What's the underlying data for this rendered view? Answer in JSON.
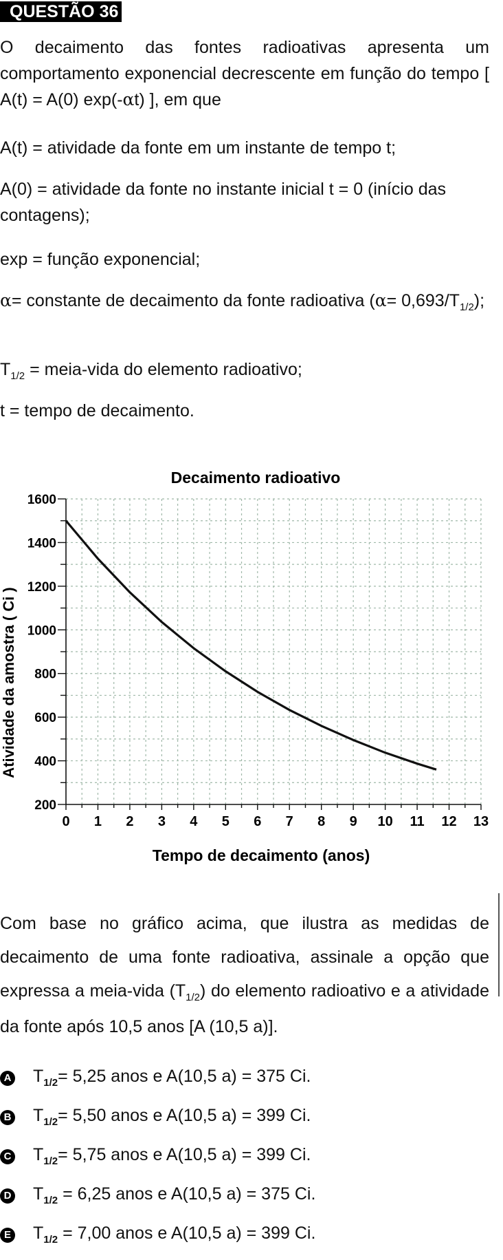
{
  "question": {
    "badge": "QUESTÃO 36"
  },
  "intro": {
    "p1a": "O decaimento das fontes radioativas apresenta um comportamento exponencial decrescente em função do tempo [ A(t) = A(0) exp(-",
    "alpha": "α",
    "p1b": "t) ], em que"
  },
  "definitions": {
    "d1": "A(t) = atividade da fonte em um instante de tempo t;",
    "d2": "A(0) = atividade da fonte no instante inicial t = 0 (início das contagens);",
    "d3": "exp = função exponencial;",
    "d4a": "= constante de decaimento da fonte radioativa (",
    "d4b": "= 0,693/T",
    "d4sub": "1/2",
    "d4c": ");",
    "d5a": "T",
    "d5sub": "1/2",
    "d5b": " = meia-vida do elemento radioativo;",
    "d6": "t = tempo de decaimento."
  },
  "chart_data": {
    "type": "line",
    "title": "Decaimento radioativo",
    "xlabel": "Tempo de decaimento (anos)",
    "ylabel": "Atividade da amostra ( Ci )",
    "xlim": [
      0,
      13
    ],
    "ylim": [
      200,
      1600
    ],
    "x_ticks": [
      0,
      1,
      2,
      3,
      4,
      5,
      6,
      7,
      8,
      9,
      10,
      11,
      12,
      13
    ],
    "y_ticks": [
      200,
      400,
      600,
      800,
      1000,
      1200,
      1400,
      1600
    ],
    "grid": true,
    "series": [
      {
        "values": [
          {
            "x": 0,
            "y": 1500
          },
          {
            "x": 1,
            "y": 1326
          },
          {
            "x": 2,
            "y": 1172
          },
          {
            "x": 3,
            "y": 1036
          },
          {
            "x": 4,
            "y": 916
          },
          {
            "x": 5,
            "y": 810
          },
          {
            "x": 6,
            "y": 716
          },
          {
            "x": 7,
            "y": 633
          },
          {
            "x": 8,
            "y": 560
          },
          {
            "x": 9,
            "y": 495
          },
          {
            "x": 10,
            "y": 437
          },
          {
            "x": 11,
            "y": 387
          },
          {
            "x": 11.6,
            "y": 360
          }
        ]
      }
    ]
  },
  "question_text": {
    "q1": "Com base no gráfico acima, que ilustra as medidas de decaimento de uma fonte radioativa, assinale a opção que expressa a meia-vida (T",
    "qsub": "1/2",
    "q2": ") do elemento radioativo e a atividade da fonte após 10,5 anos [A (10,5 a)]."
  },
  "options": [
    {
      "letter": "A",
      "t": "T",
      "sub": "1/2",
      "rest": "= 5,25 anos e A(10,5 a) = 375 Ci."
    },
    {
      "letter": "B",
      "t": "T",
      "sub": "1/2",
      "rest": "= 5,50 anos e A(10,5 a) = 399 Ci."
    },
    {
      "letter": "C",
      "t": "T",
      "sub": "1/2",
      "rest": "= 5,75 anos e A(10,5 a) = 399 Ci."
    },
    {
      "letter": "D",
      "t": "T",
      "sub": "1/2",
      "rest": " = 6,25 anos e A(10,5 a) = 375 Ci."
    },
    {
      "letter": "E",
      "t": "T",
      "sub": "1/2",
      "rest": " = 7,00 anos e A(10,5 a) = 399 Ci."
    }
  ],
  "colors": {
    "text": "#111111",
    "grid": "#9fb8a8",
    "axis": "#111111"
  }
}
